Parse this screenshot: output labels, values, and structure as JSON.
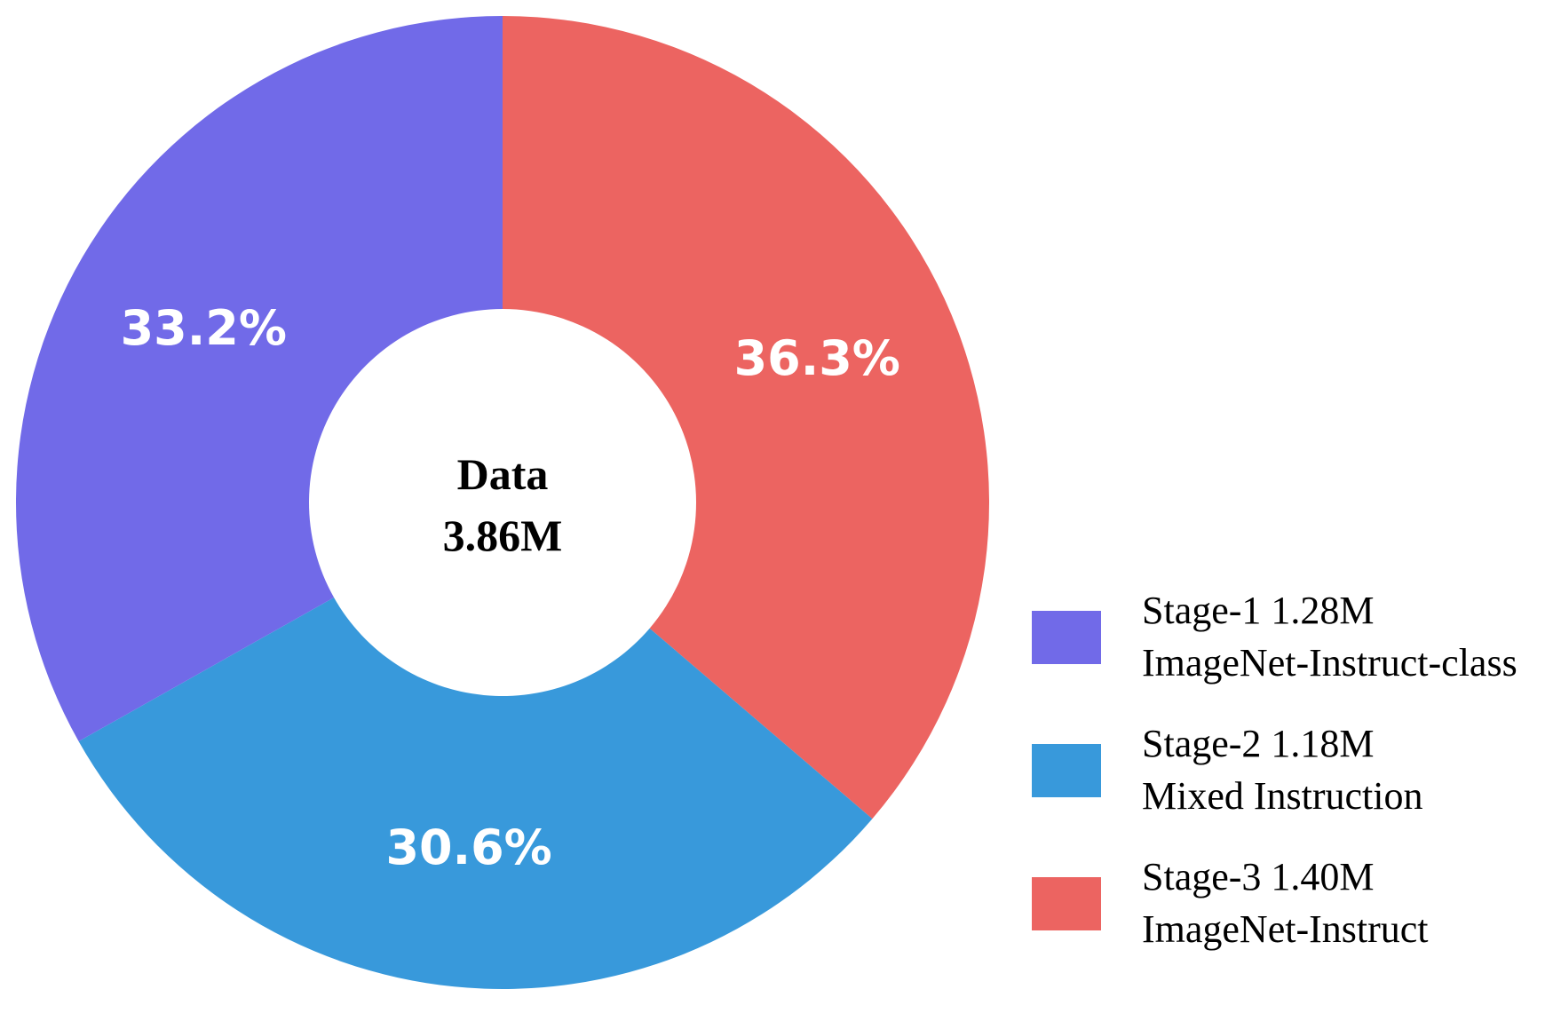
{
  "chart_data": {
    "type": "pie",
    "center": {
      "line1": "Data",
      "line2": "3.86M"
    },
    "slices": [
      {
        "percent_label": "36.3%",
        "value": 36.3,
        "color": "#ec6461",
        "legend_line1": "Stage-3 1.40M",
        "legend_line2": "ImageNet-Instruct"
      },
      {
        "percent_label": "30.6%",
        "value": 30.6,
        "color": "#3899db",
        "legend_line1": "Stage-2 1.18M",
        "legend_line2": "Mixed Instruction"
      },
      {
        "percent_label": "33.2%",
        "value": 33.2,
        "color": "#716ae8",
        "legend_line1": "Stage-1 1.28M",
        "legend_line2": "ImageNet-Instruct-class"
      }
    ],
    "legend": {
      "position": "bottom-right",
      "order": [
        2,
        1,
        0
      ]
    }
  }
}
